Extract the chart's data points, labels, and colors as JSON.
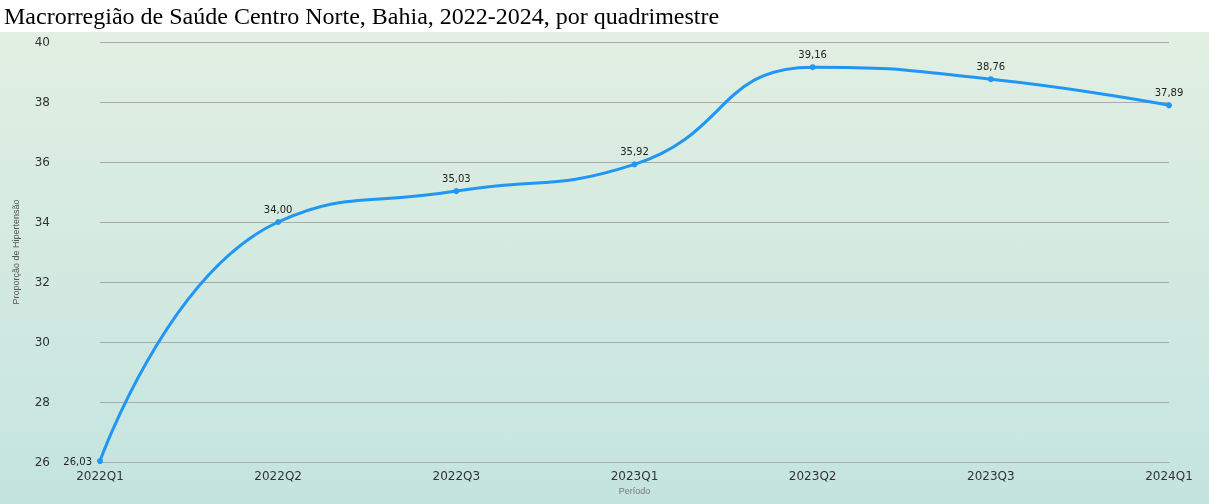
{
  "chart_data": {
    "type": "line",
    "title": "Macrorregião de Saúde Centro Norte, Bahia, 2022-2024, por quadrimestre",
    "xlabel": "Período",
    "ylabel": "Proporção de Hipertensão",
    "categories": [
      "2022Q1",
      "2022Q2",
      "2022Q3",
      "2023Q1",
      "2023Q2",
      "2023Q3",
      "2024Q1"
    ],
    "series": [
      {
        "color": "#2196f3",
        "values": [
          26.03,
          34.0,
          35.03,
          35.92,
          39.16,
          38.76,
          37.89
        ],
        "value_labels": [
          "26,03",
          "34,00",
          "35,03",
          "35,92",
          "39,16",
          "38,76",
          "37,89"
        ]
      }
    ],
    "ylim": [
      26,
      40
    ],
    "yticks": [
      26,
      28,
      30,
      32,
      34,
      36,
      38,
      40
    ],
    "grid": "y",
    "marker": "circle",
    "line_style": "solid"
  }
}
